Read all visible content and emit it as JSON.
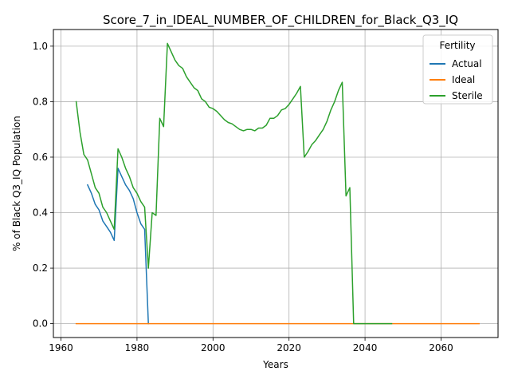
{
  "chart_data": {
    "type": "line",
    "title": "Score_7_in_IDEAL_NUMBER_OF_CHILDREN_for_Black_Q3_IQ",
    "xlabel": "Years",
    "ylabel": "% of Black Q3_IQ Population",
    "xlim": [
      1958,
      2075
    ],
    "ylim": [
      -0.05,
      1.06
    ],
    "xticks": [
      1960,
      1980,
      2000,
      2020,
      2040,
      2060
    ],
    "yticks": [
      0.0,
      0.2,
      0.4,
      0.6,
      0.8,
      1.0
    ],
    "xtick_labels": [
      "1960",
      "1980",
      "2000",
      "2020",
      "2040",
      "2060"
    ],
    "ytick_labels": [
      "0.0",
      "0.2",
      "0.4",
      "0.6",
      "0.8",
      "1.0"
    ],
    "grid": true,
    "legend": {
      "title": "Fertility",
      "placement": "top-right"
    },
    "series": [
      {
        "name": "Actual",
        "color": "#1f77b4",
        "points": [
          [
            1967,
            0.5
          ],
          [
            1968,
            0.47
          ],
          [
            1969,
            0.43
          ],
          [
            1970,
            0.41
          ],
          [
            1971,
            0.37
          ],
          [
            1972,
            0.35
          ],
          [
            1973,
            0.33
          ],
          [
            1974,
            0.3
          ],
          [
            1975,
            0.56
          ],
          [
            1976,
            0.53
          ],
          [
            1977,
            0.5
          ],
          [
            1978,
            0.48
          ],
          [
            1979,
            0.45
          ],
          [
            1980,
            0.4
          ],
          [
            1981,
            0.36
          ],
          [
            1982,
            0.34
          ],
          [
            1983,
            0.0
          ]
        ]
      },
      {
        "name": "Ideal",
        "color": "#ff7f0e",
        "points": [
          [
            1964,
            0.0
          ],
          [
            2070,
            0.0
          ]
        ]
      },
      {
        "name": "Sterile",
        "color": "#2ca02c",
        "points": [
          [
            1964,
            0.8
          ],
          [
            1965,
            0.69
          ],
          [
            1966,
            0.61
          ],
          [
            1967,
            0.59
          ],
          [
            1968,
            0.54
          ],
          [
            1969,
            0.49
          ],
          [
            1970,
            0.47
          ],
          [
            1971,
            0.42
          ],
          [
            1972,
            0.4
          ],
          [
            1973,
            0.37
          ],
          [
            1974,
            0.34
          ],
          [
            1975,
            0.63
          ],
          [
            1976,
            0.6
          ],
          [
            1977,
            0.56
          ],
          [
            1978,
            0.53
          ],
          [
            1979,
            0.49
          ],
          [
            1980,
            0.47
          ],
          [
            1981,
            0.44
          ],
          [
            1982,
            0.42
          ],
          [
            1983,
            0.2
          ],
          [
            1984,
            0.4
          ],
          [
            1985,
            0.39
          ],
          [
            1986,
            0.74
          ],
          [
            1987,
            0.71
          ],
          [
            1988,
            1.01
          ],
          [
            1989,
            0.98
          ],
          [
            1990,
            0.95
          ],
          [
            1991,
            0.93
          ],
          [
            1992,
            0.92
          ],
          [
            1993,
            0.89
          ],
          [
            1994,
            0.87
          ],
          [
            1995,
            0.85
          ],
          [
            1996,
            0.84
          ],
          [
            1997,
            0.81
          ],
          [
            1998,
            0.8
          ],
          [
            1999,
            0.78
          ],
          [
            2000,
            0.775
          ],
          [
            2001,
            0.765
          ],
          [
            2002,
            0.75
          ],
          [
            2003,
            0.735
          ],
          [
            2004,
            0.725
          ],
          [
            2005,
            0.72
          ],
          [
            2006,
            0.71
          ],
          [
            2007,
            0.7
          ],
          [
            2008,
            0.695
          ],
          [
            2009,
            0.7
          ],
          [
            2010,
            0.7
          ],
          [
            2011,
            0.695
          ],
          [
            2012,
            0.705
          ],
          [
            2013,
            0.705
          ],
          [
            2014,
            0.715
          ],
          [
            2015,
            0.74
          ],
          [
            2016,
            0.74
          ],
          [
            2017,
            0.75
          ],
          [
            2018,
            0.77
          ],
          [
            2019,
            0.775
          ],
          [
            2020,
            0.79
          ],
          [
            2021,
            0.81
          ],
          [
            2022,
            0.83
          ],
          [
            2023,
            0.855
          ],
          [
            2024,
            0.6
          ],
          [
            2025,
            0.62
          ],
          [
            2026,
            0.645
          ],
          [
            2027,
            0.66
          ],
          [
            2028,
            0.68
          ],
          [
            2029,
            0.7
          ],
          [
            2030,
            0.73
          ],
          [
            2031,
            0.77
          ],
          [
            2032,
            0.8
          ],
          [
            2033,
            0.84
          ],
          [
            2034,
            0.87
          ],
          [
            2035,
            0.46
          ],
          [
            2036,
            0.49
          ],
          [
            2037,
            0.0
          ],
          [
            2047,
            0.0
          ]
        ]
      }
    ]
  }
}
